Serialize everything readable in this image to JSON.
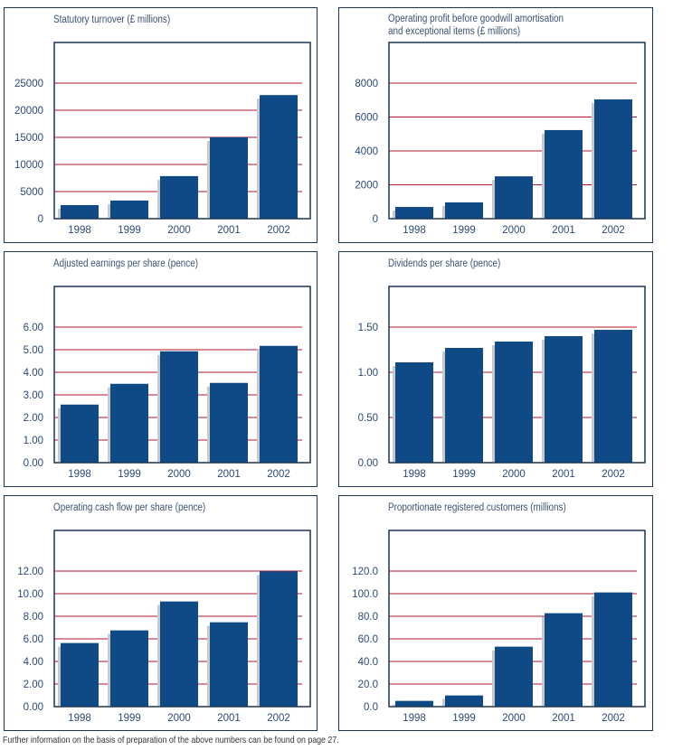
{
  "footnote": "Further information on the basis of preparation of the above numbers can be found on page 27.",
  "colors": {
    "bar": "#0d4a86",
    "shadow": "#c9c9cb",
    "gridline": "#b3172b",
    "frame": "#1c3552",
    "text": "#2c4a72"
  },
  "chart_data": [
    {
      "id": "turnover",
      "type": "bar",
      "title": "Statutory turnover (£ millions)",
      "categories": [
        "1998",
        "1999",
        "2000",
        "2001",
        "2002"
      ],
      "values": [
        2500,
        3350,
        7850,
        15000,
        22800
      ],
      "yticks": [
        0,
        5000,
        10000,
        15000,
        20000,
        25000
      ],
      "ytick_labels": [
        "0",
        "5000",
        "10000",
        "15000",
        "20000",
        "25000"
      ],
      "ylim": [
        0,
        25000
      ],
      "grid": true,
      "xlabel": "",
      "ylabel": ""
    },
    {
      "id": "operating-profit",
      "type": "bar",
      "title": "Operating profit before goodwill amortisation and exceptional items (£ millions)",
      "title_lines": [
        "Operating profit before goodwill amortisation",
        "and exceptional items (£ millions)"
      ],
      "categories": [
        "1998",
        "1999",
        "2000",
        "2001",
        "2002"
      ],
      "values": [
        690,
        960,
        2500,
        5230,
        7040
      ],
      "yticks": [
        0,
        2000,
        4000,
        6000,
        8000
      ],
      "ytick_labels": [
        "0",
        "2000",
        "4000",
        "6000",
        "8000"
      ],
      "ylim": [
        0,
        8000
      ],
      "grid": true,
      "xlabel": "",
      "ylabel": ""
    },
    {
      "id": "eps",
      "type": "bar",
      "title": "Adjusted earnings per share (pence)",
      "categories": [
        "1998",
        "1999",
        "2000",
        "2001",
        "2002"
      ],
      "values": [
        2.57,
        3.49,
        4.93,
        3.53,
        5.17
      ],
      "yticks": [
        0,
        1,
        2,
        3,
        4,
        5,
        6
      ],
      "ytick_labels": [
        "0.00",
        "1.00",
        "2.00",
        "3.00",
        "4.00",
        "5.00",
        "6.00"
      ],
      "ylim": [
        0,
        6
      ],
      "grid": true,
      "xlabel": "",
      "ylabel": ""
    },
    {
      "id": "dividends",
      "type": "bar",
      "title": "Dividends per share (pence)",
      "categories": [
        "1998",
        "1999",
        "2000",
        "2001",
        "2002"
      ],
      "values": [
        1.11,
        1.27,
        1.34,
        1.4,
        1.47
      ],
      "yticks": [
        0,
        0.5,
        1.0,
        1.5
      ],
      "ytick_labels": [
        "0.00",
        "0.50",
        "1.00",
        "1.50"
      ],
      "ylim": [
        0,
        1.5
      ],
      "grid": true,
      "xlabel": "",
      "ylabel": ""
    },
    {
      "id": "cash-flow",
      "type": "bar",
      "title": "Operating cash flow per share (pence)",
      "categories": [
        "1998",
        "1999",
        "2000",
        "2001",
        "2002"
      ],
      "values": [
        5.63,
        6.75,
        9.31,
        7.47,
        11.97
      ],
      "yticks": [
        0,
        2,
        4,
        6,
        8,
        10,
        12
      ],
      "ytick_labels": [
        "0.00",
        "2.00",
        "4.00",
        "6.00",
        "8.00",
        "10.00",
        "12.00"
      ],
      "ylim": [
        0,
        12
      ],
      "grid": true,
      "xlabel": "",
      "ylabel": ""
    },
    {
      "id": "customers",
      "type": "bar",
      "title": "Proportionate registered customers (millions)",
      "categories": [
        "1998",
        "1999",
        "2000",
        "2001",
        "2002"
      ],
      "values": [
        5.1,
        9.9,
        53.1,
        82.7,
        101.1
      ],
      "yticks": [
        0,
        20,
        40,
        60,
        80,
        100,
        120
      ],
      "ytick_labels": [
        "0.0",
        "20.0",
        "40.0",
        "60.0",
        "80.0",
        "100.0",
        "120.0"
      ],
      "ylim": [
        0,
        120
      ],
      "grid": true,
      "xlabel": "",
      "ylabel": ""
    }
  ]
}
